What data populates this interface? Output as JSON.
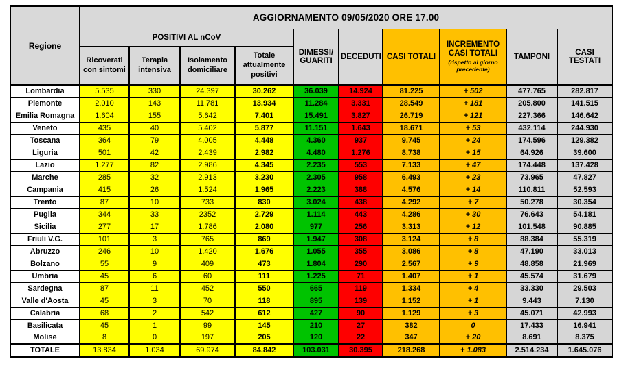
{
  "header": {
    "title": "AGGIORNAMENTO 09/05/2020 ORE 17.00",
    "regione": "Regione",
    "positivi_group": "POSITIVI AL nCoV",
    "cols": {
      "ricoverati": "Ricoverati\ncon sintomi",
      "terapia": "Terapia\nintensiva",
      "isolamento": "Isolamento\ndomiciliare",
      "totale_positivi": "Totale\nattualmente\npositivi",
      "dimessi": "DIMESSI/\nGUARITI",
      "deceduti": "DECEDUTI",
      "casi_totali": "CASI TOTALI",
      "incremento_main": "INCREMENTO\nCASI TOTALI",
      "incremento_note": "(rispetto al giorno\nprecedente)",
      "tamponi": "TAMPONI",
      "casi_testati": "CASI TESTATI"
    }
  },
  "colors": {
    "header_gray": "#d9d9d9",
    "yellow": "#ffff00",
    "green": "#00c300",
    "red": "#fe0000",
    "orange": "#ffc000",
    "data_gray": "#d6d6d6",
    "border": "#000000"
  },
  "rows": [
    {
      "region": "Lombardia",
      "values": [
        "5.535",
        "330",
        "24.397",
        "30.262",
        "36.039",
        "14.924",
        "81.225",
        "+ 502",
        "477.765",
        "282.817"
      ]
    },
    {
      "region": "Piemonte",
      "values": [
        "2.010",
        "143",
        "11.781",
        "13.934",
        "11.284",
        "3.331",
        "28.549",
        "+ 181",
        "205.800",
        "141.515"
      ]
    },
    {
      "region": "Emilia Romagna",
      "values": [
        "1.604",
        "155",
        "5.642",
        "7.401",
        "15.491",
        "3.827",
        "26.719",
        "+ 121",
        "227.366",
        "146.642"
      ]
    },
    {
      "region": "Veneto",
      "values": [
        "435",
        "40",
        "5.402",
        "5.877",
        "11.151",
        "1.643",
        "18.671",
        "+ 53",
        "432.114",
        "244.930"
      ]
    },
    {
      "region": "Toscana",
      "values": [
        "364",
        "79",
        "4.005",
        "4.448",
        "4.360",
        "937",
        "9.745",
        "+ 24",
        "174.596",
        "129.382"
      ]
    },
    {
      "region": "Liguria",
      "values": [
        "501",
        "42",
        "2.439",
        "2.982",
        "4.480",
        "1.276",
        "8.738",
        "+ 15",
        "64.926",
        "39.600"
      ]
    },
    {
      "region": "Lazio",
      "values": [
        "1.277",
        "82",
        "2.986",
        "4.345",
        "2.235",
        "553",
        "7.133",
        "+ 47",
        "174.448",
        "137.428"
      ]
    },
    {
      "region": "Marche",
      "values": [
        "285",
        "32",
        "2.913",
        "3.230",
        "2.305",
        "958",
        "6.493",
        "+ 23",
        "73.965",
        "47.827"
      ]
    },
    {
      "region": "Campania",
      "values": [
        "415",
        "26",
        "1.524",
        "1.965",
        "2.223",
        "388",
        "4.576",
        "+ 14",
        "110.811",
        "52.593"
      ]
    },
    {
      "region": "Trento",
      "values": [
        "87",
        "10",
        "733",
        "830",
        "3.024",
        "438",
        "4.292",
        "+ 7",
        "50.278",
        "30.354"
      ]
    },
    {
      "region": "Puglia",
      "values": [
        "344",
        "33",
        "2352",
        "2.729",
        "1.114",
        "443",
        "4.286",
        "+ 30",
        "76.643",
        "54.181"
      ]
    },
    {
      "region": "Sicilia",
      "values": [
        "277",
        "17",
        "1.786",
        "2.080",
        "977",
        "256",
        "3.313",
        "+ 12",
        "101.548",
        "90.885"
      ]
    },
    {
      "region": "Friuli V.G.",
      "values": [
        "101",
        "3",
        "765",
        "869",
        "1.947",
        "308",
        "3.124",
        "+ 8",
        "88.384",
        "55.319"
      ]
    },
    {
      "region": "Abruzzo",
      "values": [
        "246",
        "10",
        "1.420",
        "1.676",
        "1.055",
        "355",
        "3.086",
        "+ 8",
        "47.190",
        "33.013"
      ]
    },
    {
      "region": "Bolzano",
      "values": [
        "55",
        "9",
        "409",
        "473",
        "1.804",
        "290",
        "2.567",
        "+ 9",
        "48.858",
        "21.969"
      ]
    },
    {
      "region": "Umbria",
      "values": [
        "45",
        "6",
        "60",
        "111",
        "1.225",
        "71",
        "1.407",
        "+ 1",
        "45.574",
        "31.679"
      ]
    },
    {
      "region": "Sardegna",
      "values": [
        "87",
        "11",
        "452",
        "550",
        "665",
        "119",
        "1.334",
        "+ 4",
        "33.330",
        "29.503"
      ]
    },
    {
      "region": "Valle d'Aosta",
      "values": [
        "45",
        "3",
        "70",
        "118",
        "895",
        "139",
        "1.152",
        "+ 1",
        "9.443",
        "7.130"
      ]
    },
    {
      "region": "Calabria",
      "values": [
        "68",
        "2",
        "542",
        "612",
        "427",
        "90",
        "1.129",
        "+ 3",
        "45.071",
        "42.993"
      ]
    },
    {
      "region": "Basilicata",
      "values": [
        "45",
        "1",
        "99",
        "145",
        "210",
        "27",
        "382",
        "0",
        "17.433",
        "16.941"
      ]
    },
    {
      "region": "Molise",
      "values": [
        "8",
        "0",
        "197",
        "205",
        "120",
        "22",
        "347",
        "+ 20",
        "8.691",
        "8.375"
      ]
    }
  ],
  "totale": {
    "region": "TOTALE",
    "values": [
      "13.834",
      "1.034",
      "69.974",
      "84.842",
      "103.031",
      "30.395",
      "218.268",
      "+ 1.083",
      "2.514.234",
      "1.645.076"
    ]
  }
}
